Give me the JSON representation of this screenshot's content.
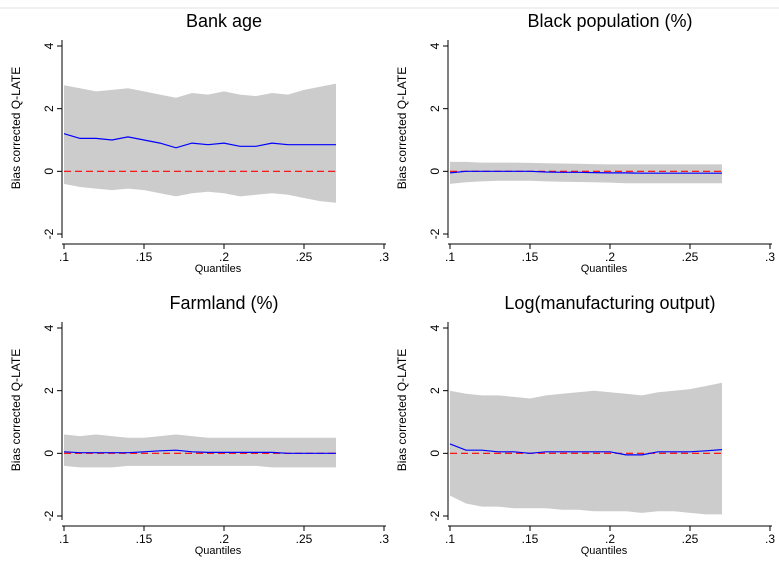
{
  "chart_data": [
    {
      "type": "line",
      "title": "Bank age",
      "xlabel": "Quantiles",
      "ylabel": "Bias corrected Q-LATE",
      "xlim": [
        0.1,
        0.3
      ],
      "ylim": [
        -2,
        4
      ],
      "xticks": [
        ".1",
        ".15",
        ".2",
        ".25",
        ".3"
      ],
      "yticks": [
        "-2",
        "0",
        "2",
        "4"
      ],
      "grid": false,
      "reference_line": {
        "y": 0,
        "color": "#ff0000",
        "style": "dashed"
      },
      "x": [
        0.1,
        0.11,
        0.12,
        0.13,
        0.14,
        0.15,
        0.16,
        0.17,
        0.18,
        0.19,
        0.2,
        0.21,
        0.22,
        0.23,
        0.24,
        0.25,
        0.26,
        0.27
      ],
      "series": [
        {
          "role": "estimate",
          "color": "#0000ff",
          "values": [
            1.2,
            1.05,
            1.05,
            1.0,
            1.1,
            1.0,
            0.9,
            0.75,
            0.9,
            0.85,
            0.9,
            0.8,
            0.8,
            0.9,
            0.85,
            0.85,
            0.85,
            0.85
          ]
        },
        {
          "role": "ci_upper",
          "color": "#cccccc",
          "values": [
            2.75,
            2.65,
            2.55,
            2.6,
            2.65,
            2.55,
            2.45,
            2.35,
            2.5,
            2.45,
            2.55,
            2.45,
            2.4,
            2.5,
            2.45,
            2.6,
            2.7,
            2.8
          ]
        },
        {
          "role": "ci_lower",
          "color": "#cccccc",
          "values": [
            -0.4,
            -0.5,
            -0.55,
            -0.6,
            -0.55,
            -0.6,
            -0.7,
            -0.8,
            -0.7,
            -0.65,
            -0.7,
            -0.8,
            -0.75,
            -0.7,
            -0.75,
            -0.85,
            -0.95,
            -1.0
          ]
        }
      ]
    },
    {
      "type": "line",
      "title": "Black population (%)",
      "xlabel": "Quantiles",
      "ylabel": "Bias corrected Q-LATE",
      "xlim": [
        0.1,
        0.3
      ],
      "ylim": [
        -2,
        4
      ],
      "xticks": [
        ".1",
        ".15",
        ".2",
        ".25",
        ".3"
      ],
      "yticks": [
        "-2",
        "0",
        "2",
        "4"
      ],
      "grid": false,
      "reference_line": {
        "y": 0,
        "color": "#ff0000",
        "style": "dashed"
      },
      "x": [
        0.1,
        0.11,
        0.12,
        0.13,
        0.14,
        0.15,
        0.16,
        0.17,
        0.18,
        0.19,
        0.2,
        0.21,
        0.22,
        0.23,
        0.24,
        0.25,
        0.26,
        0.27
      ],
      "series": [
        {
          "role": "estimate",
          "color": "#0000ff",
          "values": [
            -0.05,
            0.0,
            0.0,
            0.0,
            0.0,
            0.0,
            -0.02,
            -0.03,
            -0.03,
            -0.04,
            -0.05,
            -0.05,
            -0.06,
            -0.06,
            -0.06,
            -0.06,
            -0.06,
            -0.06
          ]
        },
        {
          "role": "ci_upper",
          "color": "#cccccc",
          "values": [
            0.3,
            0.3,
            0.28,
            0.28,
            0.28,
            0.27,
            0.26,
            0.25,
            0.24,
            0.23,
            0.22,
            0.22,
            0.22,
            0.22,
            0.22,
            0.22,
            0.22,
            0.22
          ]
        },
        {
          "role": "ci_lower",
          "color": "#cccccc",
          "values": [
            -0.4,
            -0.35,
            -0.32,
            -0.3,
            -0.3,
            -0.3,
            -0.32,
            -0.33,
            -0.34,
            -0.35,
            -0.36,
            -0.38,
            -0.38,
            -0.38,
            -0.38,
            -0.38,
            -0.38,
            -0.38
          ]
        }
      ]
    },
    {
      "type": "line",
      "title": "Farmland (%)",
      "xlabel": "Quantiles",
      "ylabel": "Bias corrected Q-LATE",
      "xlim": [
        0.1,
        0.3
      ],
      "ylim": [
        -2,
        4
      ],
      "xticks": [
        ".1",
        ".15",
        ".2",
        ".25",
        ".3"
      ],
      "yticks": [
        "-2",
        "0",
        "2",
        "4"
      ],
      "grid": false,
      "reference_line": {
        "y": 0,
        "color": "#ff0000",
        "style": "dashed"
      },
      "x": [
        0.1,
        0.11,
        0.12,
        0.13,
        0.14,
        0.15,
        0.16,
        0.17,
        0.18,
        0.19,
        0.2,
        0.21,
        0.22,
        0.23,
        0.24,
        0.25,
        0.26,
        0.27
      ],
      "series": [
        {
          "role": "estimate",
          "color": "#0000ff",
          "values": [
            0.05,
            0.02,
            0.02,
            0.02,
            0.02,
            0.05,
            0.08,
            0.1,
            0.05,
            0.03,
            0.03,
            0.03,
            0.03,
            0.03,
            0.0,
            0.0,
            0.0,
            0.0
          ]
        },
        {
          "role": "ci_upper",
          "color": "#cccccc",
          "values": [
            0.6,
            0.55,
            0.6,
            0.55,
            0.5,
            0.5,
            0.55,
            0.6,
            0.55,
            0.5,
            0.5,
            0.5,
            0.5,
            0.5,
            0.5,
            0.5,
            0.5,
            0.5
          ]
        },
        {
          "role": "ci_lower",
          "color": "#cccccc",
          "values": [
            -0.4,
            -0.45,
            -0.45,
            -0.45,
            -0.4,
            -0.4,
            -0.4,
            -0.4,
            -0.4,
            -0.4,
            -0.4,
            -0.4,
            -0.4,
            -0.45,
            -0.45,
            -0.45,
            -0.45,
            -0.45
          ]
        }
      ]
    },
    {
      "type": "line",
      "title": "Log(manufacturing output)",
      "xlabel": "Quantiles",
      "ylabel": "Bias corrected Q-LATE",
      "xlim": [
        0.1,
        0.3
      ],
      "ylim": [
        -2,
        4
      ],
      "xticks": [
        ".1",
        ".15",
        ".2",
        ".25",
        ".3"
      ],
      "yticks": [
        "-2",
        "0",
        "2",
        "4"
      ],
      "grid": false,
      "reference_line": {
        "y": 0,
        "color": "#ff0000",
        "style": "dashed"
      },
      "x": [
        0.1,
        0.11,
        0.12,
        0.13,
        0.14,
        0.15,
        0.16,
        0.17,
        0.18,
        0.19,
        0.2,
        0.21,
        0.22,
        0.23,
        0.24,
        0.25,
        0.26,
        0.27
      ],
      "series": [
        {
          "role": "estimate",
          "color": "#0000ff",
          "values": [
            0.3,
            0.1,
            0.1,
            0.05,
            0.05,
            0.0,
            0.05,
            0.05,
            0.05,
            0.05,
            0.05,
            -0.05,
            -0.05,
            0.05,
            0.05,
            0.05,
            0.08,
            0.12
          ]
        },
        {
          "role": "ci_upper",
          "color": "#cccccc",
          "values": [
            2.0,
            1.9,
            1.85,
            1.85,
            1.8,
            1.75,
            1.85,
            1.9,
            1.95,
            2.0,
            1.95,
            1.9,
            1.85,
            1.95,
            2.0,
            2.05,
            2.15,
            2.25
          ]
        },
        {
          "role": "ci_lower",
          "color": "#cccccc",
          "values": [
            -1.35,
            -1.6,
            -1.7,
            -1.7,
            -1.75,
            -1.75,
            -1.75,
            -1.8,
            -1.8,
            -1.85,
            -1.85,
            -1.85,
            -1.9,
            -1.85,
            -1.85,
            -1.9,
            -1.95,
            -1.95
          ]
        }
      ]
    }
  ]
}
